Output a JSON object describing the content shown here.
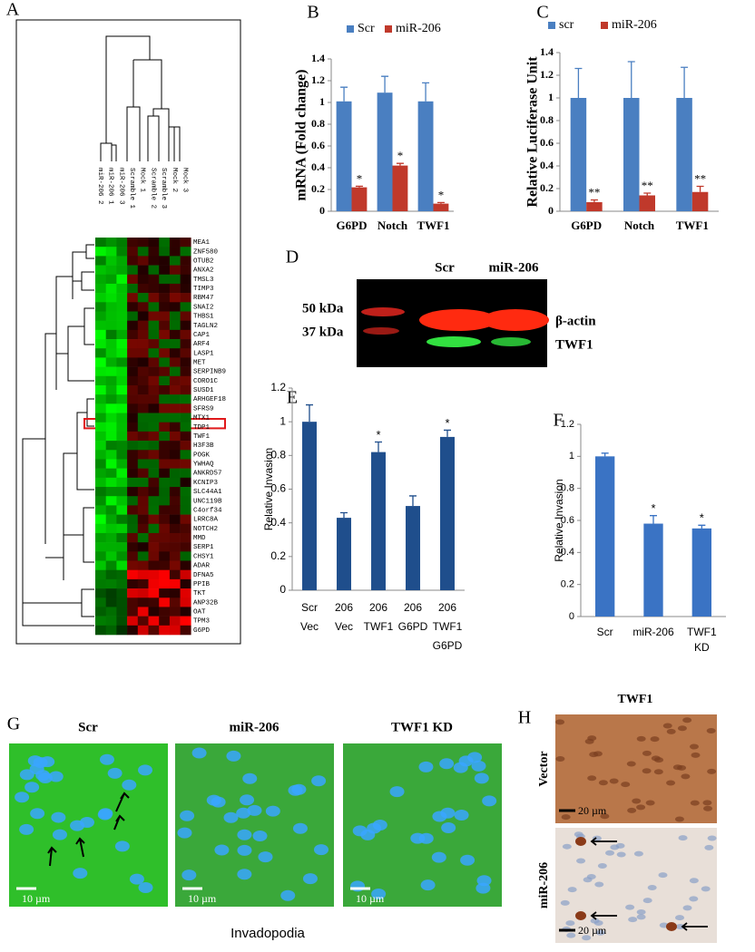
{
  "panel_labels": [
    "A",
    "B",
    "C",
    "D",
    "E",
    "F",
    "G",
    "H"
  ],
  "heatmap": {
    "samples": [
      "miR-206 2",
      "miR-206 1",
      "miR-206 3",
      "Scramble 1",
      "Mock 1",
      "Scramble 2",
      "Scramble 3",
      "Mock 2",
      "Mock 3"
    ],
    "genes": [
      "MEA1",
      "ZNF580",
      "OTUB2",
      "ANXA2",
      "TMSL3",
      "TIMP3",
      "RBM47",
      "SNAI2",
      "THBS1",
      "TAGLN2",
      "CAP1",
      "ARF4",
      "LASP1",
      "MET",
      "SERPINB9",
      "CORO1C",
      "SUSD1",
      "ARHGEF18",
      "SFRS9",
      "MTX1",
      "TDP1",
      "TWF1",
      "H3F3B",
      "POGK",
      "YWHAQ",
      "ANKRD57",
      "KCNIP3",
      "SLC44A1",
      "UNC119B",
      "C4orf34",
      "LRRC8A",
      "NOTCH2",
      "MMD",
      "SERP1",
      "CHSY1",
      "ADAR",
      "DFNA5",
      "PPIB",
      "TKT",
      "ANP32B",
      "OAT",
      "TPM3",
      "G6PD"
    ]
  },
  "chart_data": [
    {
      "type": "bar",
      "ylabel": "mRNA (Fold change)",
      "categories": [
        [
          "G6PD"
        ],
        [
          "Notch"
        ],
        [
          "TWF1"
        ]
      ],
      "series": [
        {
          "name": "Scr",
          "color": "#4a7fc1",
          "values": [
            1.01,
            1.09,
            1.01
          ],
          "errors": [
            0.13,
            0.15,
            0.17
          ],
          "annotations": [
            null,
            null,
            null
          ]
        },
        {
          "name": "miR-206",
          "color": "#c0392b",
          "values": [
            0.22,
            0.42,
            0.07
          ],
          "errors": [
            0.01,
            0.02,
            0.01
          ],
          "annotations": [
            "*",
            "*",
            "*"
          ]
        }
      ],
      "ylim": [
        0,
        1.4
      ],
      "yticks": [
        0,
        0.2,
        0.4,
        0.6,
        0.8,
        1,
        1.2,
        1.4
      ]
    },
    {
      "type": "bar",
      "ylabel": "Relative Luciferase Unit",
      "categories": [
        [
          "G6PD"
        ],
        [
          "Notch"
        ],
        [
          "TWF1"
        ]
      ],
      "series": [
        {
          "name": "scr",
          "color": "#4a7fc1",
          "values": [
            1,
            1,
            1
          ],
          "errors": [
            0.26,
            0.32,
            0.27
          ],
          "annotations": [
            null,
            null,
            null
          ]
        },
        {
          "name": "miR-206",
          "color": "#c0392b",
          "values": [
            0.08,
            0.14,
            0.17
          ],
          "errors": [
            0.02,
            0.02,
            0.05
          ],
          "annotations": [
            "**",
            "**",
            "**"
          ]
        }
      ],
      "ylim": [
        0,
        1.4
      ],
      "yticks": [
        0,
        0.2,
        0.4,
        0.6,
        0.8,
        1,
        1.2,
        1.4
      ]
    },
    {
      "type": "bar",
      "ylabel": "Relative Invasion",
      "categories": [
        [
          "Scr",
          "Vec"
        ],
        [
          "206",
          "Vec"
        ],
        [
          "206",
          "TWF1"
        ],
        [
          "206",
          "G6PD"
        ],
        [
          "206",
          "TWF1",
          "G6PD"
        ]
      ],
      "series": [
        {
          "color": "#1f4e8c",
          "values": [
            1,
            0.43,
            0.82,
            0.5,
            0.91
          ],
          "errors": [
            0.1,
            0.03,
            0.06,
            0.06,
            0.04
          ],
          "annotations": [
            null,
            null,
            "*",
            null,
            "*"
          ]
        }
      ],
      "ylim": [
        0,
        1.2
      ],
      "yticks": [
        0,
        0.2,
        0.4,
        0.6,
        0.8,
        1,
        1.2
      ]
    },
    {
      "type": "bar",
      "ylabel": "Relative Invasion",
      "categories": [
        [
          "Scr"
        ],
        [
          "miR-206"
        ],
        [
          "TWF1",
          "KD"
        ]
      ],
      "series": [
        {
          "color": "#3a73c4",
          "values": [
            1,
            0.58,
            0.55
          ],
          "errors": [
            0.02,
            0.05,
            0.02
          ],
          "annotations": [
            null,
            "*",
            "*"
          ]
        }
      ],
      "ylim": [
        0,
        1.2
      ],
      "yticks": [
        0,
        0.2,
        0.4,
        0.6,
        0.8,
        1,
        1.2
      ]
    }
  ],
  "blot": {
    "lanes": [
      "Scr",
      "miR-206"
    ],
    "markers": [
      "50 kDa",
      "37 kDa"
    ],
    "bands": [
      "β-actin",
      "TWF1"
    ]
  },
  "images_g": {
    "titles": [
      "Scr",
      "miR-206",
      "TWF1 KD"
    ],
    "scale_labels": [
      "10 µm",
      "10 µm",
      "10 µm"
    ],
    "caption": "Invadopodia"
  },
  "images_h": {
    "title": "TWF1",
    "rows": [
      "Vector",
      "miR-206"
    ],
    "scale_labels": [
      "20 µm",
      "20 µm"
    ]
  }
}
